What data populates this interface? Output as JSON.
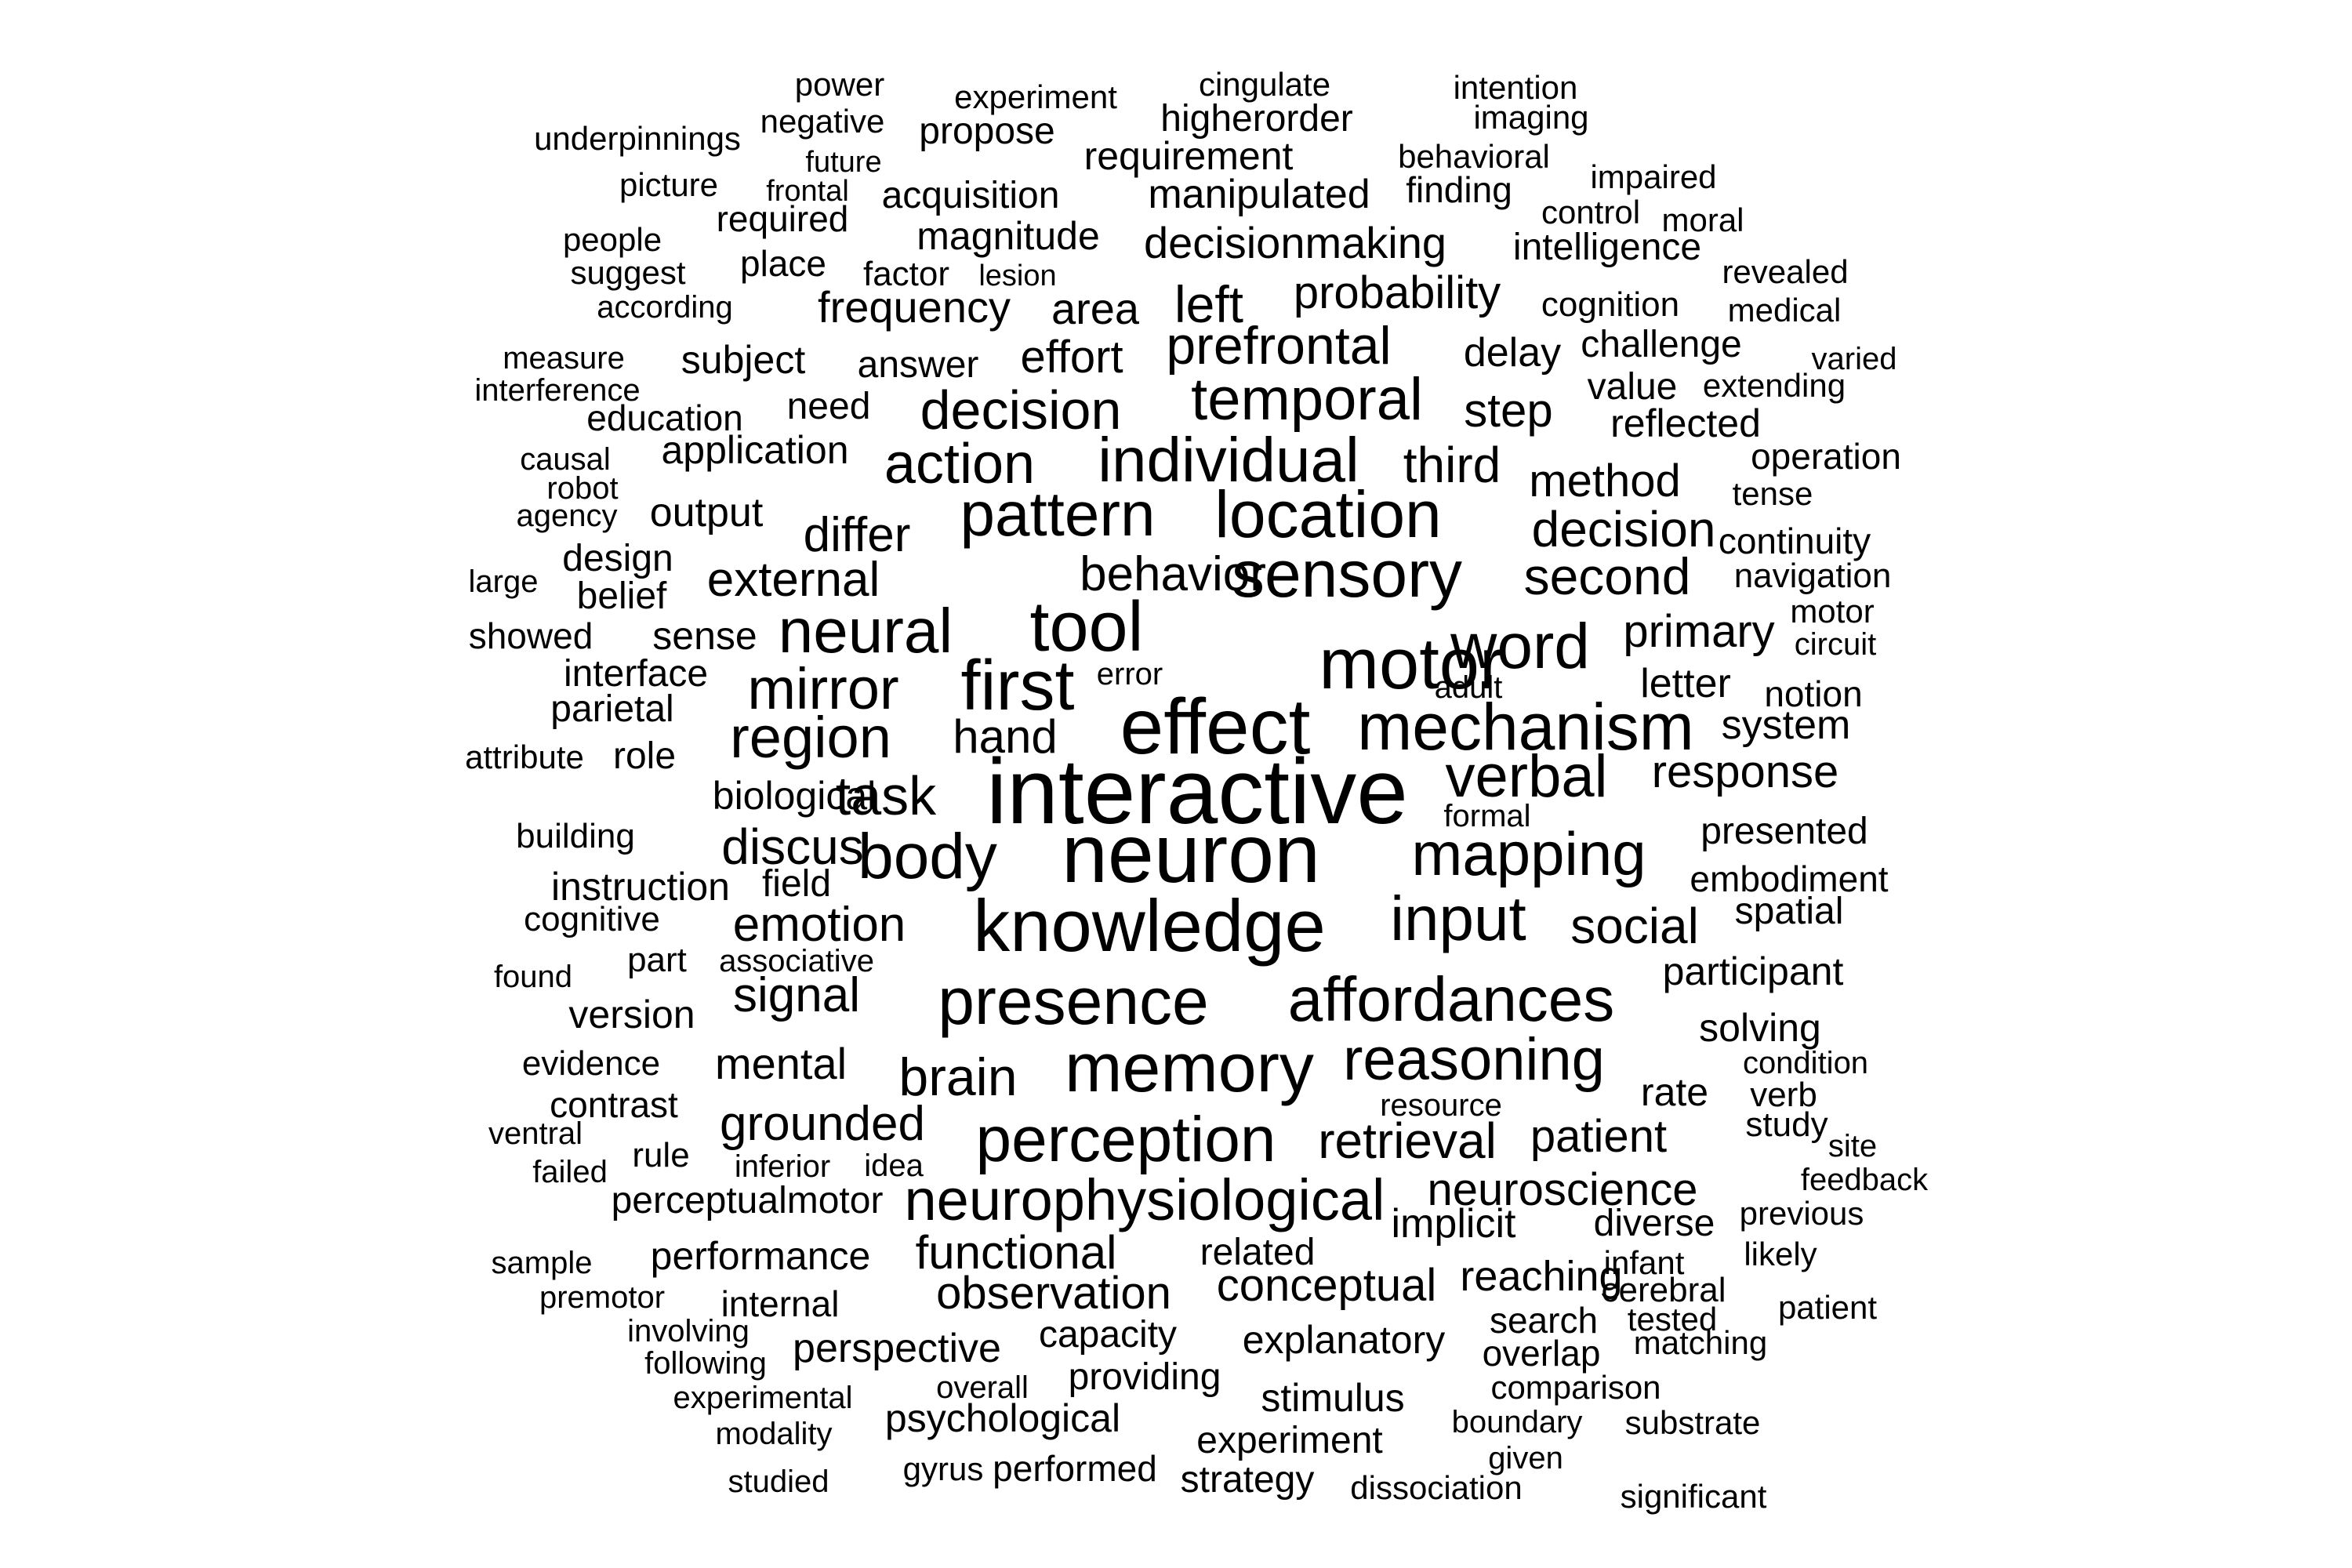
{
  "words": [
    "power",
    "experiment",
    "cingulate",
    "intention",
    "negative",
    "higherorder",
    "imaging",
    "underpinnings",
    "propose",
    "future",
    "requirement",
    "behavioral",
    "picture",
    "frontal",
    "acquisition",
    "manipulated",
    "finding",
    "impaired",
    "required",
    "control",
    "moral",
    "people",
    "magnitude",
    "decisionmaking",
    "intelligence",
    "suggest",
    "place",
    "factor",
    "lesion",
    "revealed",
    "according",
    "frequency",
    "area",
    "left",
    "probability",
    "cognition",
    "medical",
    "measure",
    "subject",
    "answer",
    "effort",
    "prefrontal",
    "delay",
    "challenge",
    "varied",
    "interference",
    "need",
    "decision",
    "temporal",
    "step",
    "value",
    "extending",
    "education",
    "reflected",
    "causal",
    "application",
    "operation",
    "robot",
    "action",
    "individual",
    "third",
    "method",
    "tense",
    "agency",
    "output",
    "pattern",
    "location",
    "continuity",
    "differ",
    "decision",
    "large",
    "design",
    "external",
    "behavior",
    "sensory",
    "second",
    "navigation",
    "belief",
    "motor",
    "showed",
    "sense",
    "neural",
    "tool",
    "word",
    "primary",
    "circuit",
    "interface",
    "error",
    "motor",
    "mirror",
    "first",
    "adult",
    "letter",
    "notion",
    "parietal",
    "hand",
    "effect",
    "mechanism",
    "system",
    "attribute",
    "role",
    "region",
    "response",
    "biological",
    "task",
    "interactive",
    "verbal",
    "formal",
    "building",
    "discus",
    "body",
    "neuron",
    "mapping",
    "presented",
    "instruction",
    "field",
    "embodiment",
    "cognitive",
    "emotion",
    "knowledge",
    "input",
    "social",
    "spatial",
    "found",
    "part",
    "associative",
    "participant",
    "version",
    "signal",
    "presence",
    "affordances",
    "solving",
    "evidence",
    "mental",
    "brain",
    "memory",
    "reasoning",
    "condition",
    "contrast",
    "rate",
    "verb",
    "resource",
    "ventral",
    "grounded",
    "perception",
    "retrieval",
    "patient",
    "study",
    "rule",
    "failed",
    "inferior",
    "idea",
    "site",
    "perceptualmotor",
    "neurophysiological",
    "neuroscience",
    "feedback",
    "implicit",
    "diverse",
    "previous",
    "sample",
    "performance",
    "functional",
    "related",
    "likely",
    "infant",
    "reaching",
    "premotor",
    "observation",
    "conceptual",
    "cerebral",
    "internal",
    "patient",
    "search",
    "tested",
    "involving",
    "capacity",
    "explanatory",
    "matching",
    "perspective",
    "following",
    "overlap",
    "providing",
    "comparison",
    "experimental",
    "overall",
    "stimulus",
    "psychological",
    "boundary",
    "substrate",
    "modality",
    "experiment",
    "given",
    "studied",
    "gyrus",
    "performed",
    "strategy",
    "dissociation",
    "significant"
  ]
}
